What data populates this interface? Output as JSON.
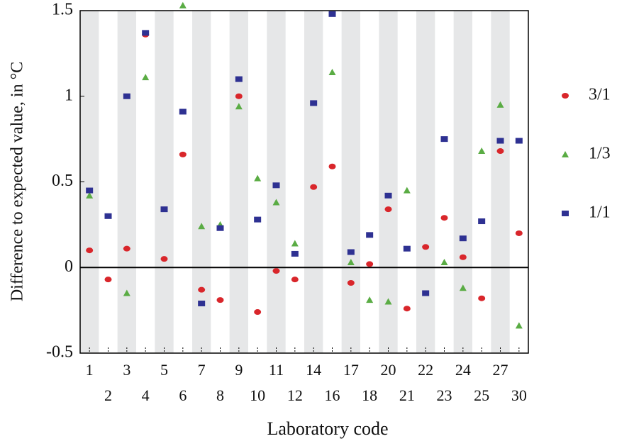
{
  "chart_data": {
    "type": "scatter",
    "x_label": "Laboratory code",
    "y_label": "Difference to expected value, in °C",
    "categories": [
      "1",
      "2",
      "3",
      "4",
      "5",
      "6",
      "7",
      "8",
      "9",
      "10",
      "11",
      "12",
      "14",
      "16",
      "17",
      "18",
      "20",
      "21",
      "22",
      "23",
      "24",
      "25",
      "27",
      "30"
    ],
    "series": [
      {
        "name": "3/1",
        "color": "#d9262b",
        "marker": "circle",
        "values": [
          0.1,
          -0.07,
          0.11,
          1.36,
          0.05,
          0.66,
          -0.13,
          -0.19,
          1.0,
          -0.26,
          -0.02,
          -0.07,
          0.47,
          0.59,
          -0.09,
          0.02,
          0.34,
          -0.24,
          0.12,
          0.29,
          0.06,
          -0.18,
          0.68,
          0.2
        ]
      },
      {
        "name": "1/3",
        "color": "#5aac44",
        "marker": "triangle",
        "values": [
          0.42,
          null,
          -0.15,
          1.11,
          null,
          1.53,
          0.24,
          0.25,
          0.94,
          0.52,
          0.38,
          0.14,
          null,
          1.14,
          0.03,
          -0.19,
          -0.2,
          0.45,
          null,
          0.03,
          -0.12,
          0.68,
          0.95,
          -0.34
        ]
      },
      {
        "name": "1/1",
        "color": "#2e3192",
        "marker": "square",
        "values": [
          0.45,
          0.3,
          1.0,
          1.37,
          0.34,
          0.91,
          -0.21,
          0.23,
          1.1,
          0.28,
          0.48,
          0.08,
          0.96,
          1.48,
          0.09,
          0.19,
          0.42,
          0.11,
          -0.15,
          0.75,
          0.17,
          0.27,
          0.74,
          0.74
        ]
      }
    ],
    "ylim": [
      -0.5,
      1.5
    ],
    "yticks": [
      -0.5,
      0,
      0.5,
      1,
      1.5
    ],
    "legend": "right"
  }
}
